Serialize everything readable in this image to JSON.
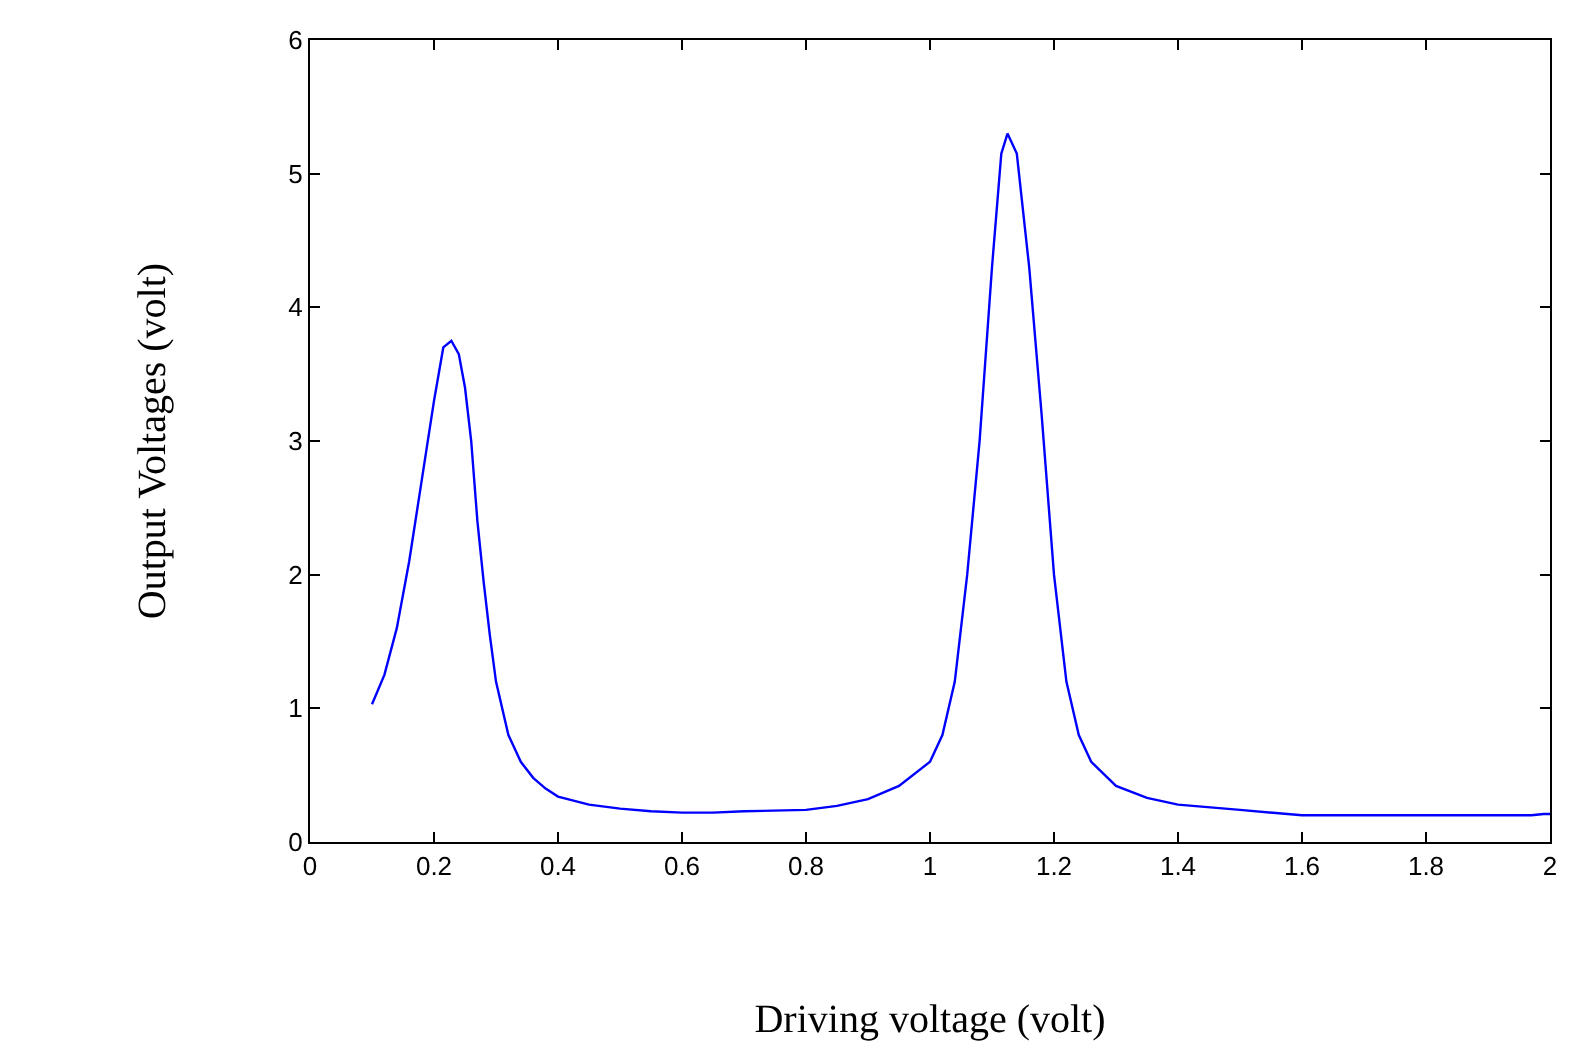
{
  "chart_data": {
    "type": "line",
    "xlabel": "Driving voltage (volt)",
    "ylabel": "Output Voltages (volt)",
    "xlim": [
      0,
      2
    ],
    "xticks": [
      0,
      0.2,
      0.4,
      0.6,
      0.8,
      1,
      1.2,
      1.4,
      1.6,
      1.8,
      2
    ],
    "ylim": [
      0,
      6
    ],
    "yticks": [
      0,
      1,
      2,
      3,
      4,
      5,
      6
    ],
    "grid": false,
    "marker": "none",
    "line_style": "solid",
    "series": [
      {
        "color": "#0000ff",
        "x": [
          0.1,
          0.12,
          0.14,
          0.16,
          0.18,
          0.2,
          0.215,
          0.228,
          0.24,
          0.25,
          0.26,
          0.27,
          0.28,
          0.29,
          0.3,
          0.32,
          0.34,
          0.36,
          0.38,
          0.4,
          0.45,
          0.5,
          0.55,
          0.6,
          0.65,
          0.7,
          0.8,
          0.85,
          0.9,
          0.95,
          1.0,
          1.02,
          1.04,
          1.06,
          1.08,
          1.1,
          1.115,
          1.125,
          1.14,
          1.16,
          1.18,
          1.2,
          1.22,
          1.24,
          1.26,
          1.3,
          1.35,
          1.4,
          1.5,
          1.6,
          1.8,
          1.97,
          1.99,
          2.0
        ],
        "values": [
          1.03,
          1.25,
          1.6,
          2.1,
          2.7,
          3.3,
          3.7,
          3.75,
          3.65,
          3.4,
          3.0,
          2.4,
          1.95,
          1.55,
          1.2,
          0.8,
          0.6,
          0.48,
          0.4,
          0.34,
          0.28,
          0.25,
          0.23,
          0.22,
          0.22,
          0.23,
          0.24,
          0.27,
          0.32,
          0.42,
          0.6,
          0.8,
          1.2,
          2.0,
          3.0,
          4.3,
          5.15,
          5.3,
          5.15,
          4.3,
          3.2,
          2.0,
          1.2,
          0.8,
          0.6,
          0.42,
          0.33,
          0.28,
          0.24,
          0.2,
          0.2,
          0.2,
          0.21,
          0.21
        ]
      }
    ]
  }
}
